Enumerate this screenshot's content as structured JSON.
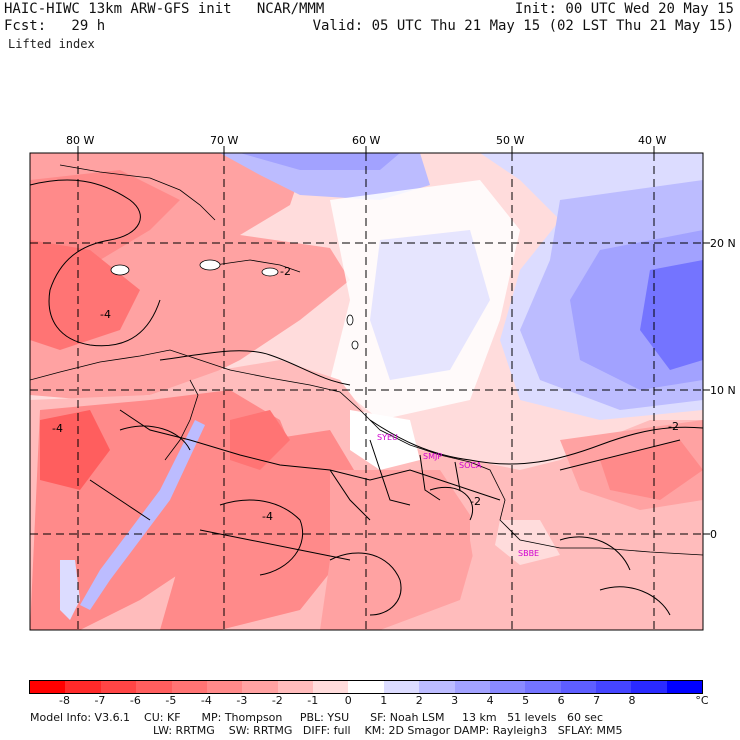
{
  "header": {
    "title": "HAIC-HIWC 13km ARW-GFS init   NCAR/MMM",
    "init": "Init: 00 UTC Wed 20 May 15",
    "fcst": "Fcst:   29 h",
    "valid": "Valid: 05 UTC Thu 21 May 15 (02 LST Thu 21 May 15)",
    "field": "Lifted index"
  },
  "map": {
    "lon_labels": [
      "80 W",
      "70 W",
      "60 W",
      "50 W",
      "40 W"
    ],
    "lat_labels": [
      "20 N",
      "10 N",
      "0"
    ],
    "stations": [
      "SYEU",
      "SMJP",
      "SOCA",
      "SBBE"
    ],
    "contour_labels": [
      "-4",
      "-2",
      "-2",
      "-4",
      "-2",
      "-4"
    ]
  },
  "colorbar": {
    "unit": "°C",
    "labels": [
      "-8",
      "-7",
      "-6",
      "-5",
      "-4",
      "-3",
      "-2",
      "-1",
      "0",
      "1",
      "2",
      "3",
      "4",
      "5",
      "6",
      "7",
      "8"
    ],
    "colors": [
      "#ff0000",
      "#ff2a2a",
      "#ff4545",
      "#ff5e5e",
      "#ff7474",
      "#ff8a8a",
      "#ffa2a2",
      "#ffbcbc",
      "#ffdcdc",
      "#ffffff",
      "#dcdcff",
      "#bcbcff",
      "#a2a2ff",
      "#8a8aff",
      "#7474ff",
      "#5e5eff",
      "#4545ff",
      "#2a2aff",
      "#0000ff"
    ]
  },
  "footer": {
    "line1": "Model Info: V3.6.1    CU: KF      MP: Thompson     PBL: YSU      SF: Noah LSM     13 km   51 levels   60 sec",
    "line2": "LW: RRTMG    SW: RRTMG   DIFF: full    KM: 2D Smagor DAMP: Rayleigh3   SFLAY: MM5"
  }
}
